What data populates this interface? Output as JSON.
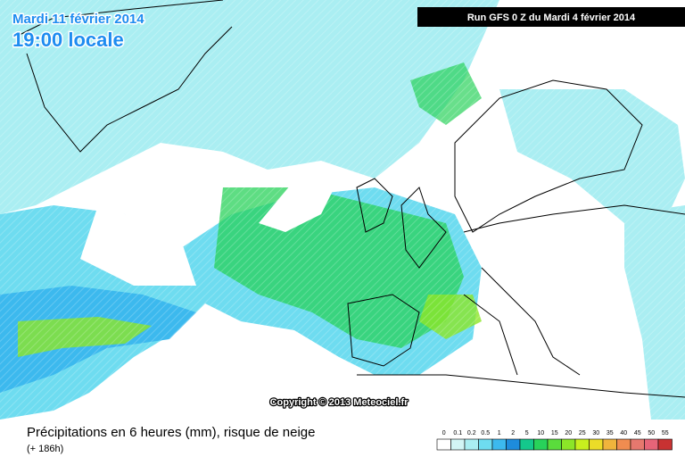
{
  "header": {
    "date": "Mardi 11 février 2014",
    "time": "19:00 locale",
    "run": "Run GFS 0 Z du Mardi 4 février 2014"
  },
  "map": {
    "copyright": "Copyright © 2013 Meteociel.fr"
  },
  "footer": {
    "title": "Précipitations en 6 heures (mm), risque de neige",
    "subtitle": "(+ 186h)"
  },
  "legend": {
    "labels": [
      0,
      0.1,
      0.2,
      0.5,
      1,
      2,
      5,
      10,
      15,
      20,
      25,
      30,
      35,
      40,
      45,
      50,
      55
    ],
    "colors": [
      "#ffffff",
      "#d2f5f5",
      "#aaeef2",
      "#6edcf0",
      "#3cb9ee",
      "#1e8cdc",
      "#14c88c",
      "#28d25a",
      "#5adc3c",
      "#8ce628",
      "#c8f01e",
      "#ebdc28",
      "#f0b43c",
      "#f08c50",
      "#e6786e",
      "#e66478",
      "#c83232"
    ]
  }
}
